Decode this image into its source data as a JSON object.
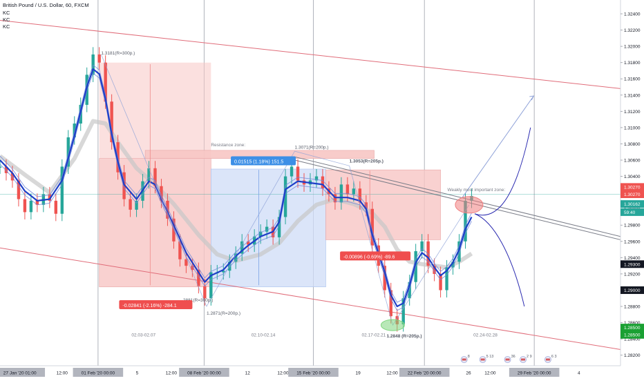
{
  "header": {
    "symbol_title": "British Pound / U.S. Dollar, 60, FXCM",
    "indicators": [
      "KC",
      "KC",
      "KC"
    ]
  },
  "colors": {
    "background": "#ffffff",
    "candle_up": "#26a69a",
    "candle_down": "#ef5350",
    "kc_line": "#1e3fc8",
    "ma_gray": "#c8c8c8",
    "channel": "#e06b78",
    "zone_red": "#f7c6c4",
    "zone_blue": "#cfdcf7",
    "label_red": "#ef4e4e",
    "label_blue": "#3d8fe6",
    "projection": "#2a2ab0",
    "guide": "#8fa2d8"
  },
  "chart_data": {
    "type": "line",
    "title": "British Pound / U.S. Dollar, 60, FXCM",
    "xlabel": "",
    "ylabel": "",
    "ylim": [
      1.2807,
      1.3257
    ],
    "yticks": [
      1.282,
      1.284,
      1.286,
      1.288,
      1.29,
      1.292,
      1.294,
      1.296,
      1.298,
      1.3,
      1.302,
      1.304,
      1.306,
      1.308,
      1.31,
      1.312,
      1.314,
      1.316,
      1.318,
      1.32,
      1.322,
      1.324
    ],
    "ytick_labels": [
      "1.28200",
      "1.28400",
      "1.28600",
      "1.28800",
      "1.29000",
      "1.29200",
      "1.29400",
      "1.29600",
      "1.29800",
      "1.30000",
      "1.30200",
      "1.30400",
      "1.30600",
      "1.30800",
      "1.31000",
      "1.31200",
      "1.31400",
      "1.31600",
      "1.31800",
      "1.32000",
      "1.32200",
      "1.32400"
    ],
    "xlim": [
      0,
      100
    ],
    "x_axis_labels": [
      {
        "x": 3.2,
        "label": "27 Jan '20  01:00",
        "highlight": true
      },
      {
        "x": 10,
        "label": "12:00",
        "highlight": false
      },
      {
        "x": 15.8,
        "label": "01 Feb '20  00:00",
        "highlight": true
      },
      {
        "x": 22.1,
        "label": "5",
        "highlight": false
      },
      {
        "x": 27.6,
        "label": "12:00",
        "highlight": false
      },
      {
        "x": 32.9,
        "label": "08 Feb '20  00:00",
        "highlight": true
      },
      {
        "x": 39.9,
        "label": "12",
        "highlight": false
      },
      {
        "x": 45.6,
        "label": "12:00",
        "highlight": false
      },
      {
        "x": 50.5,
        "label": "15 Feb '20  00:00",
        "highlight": true
      },
      {
        "x": 57.7,
        "label": "19",
        "highlight": false
      },
      {
        "x": 63.2,
        "label": "12:00",
        "highlight": false
      },
      {
        "x": 68.4,
        "label": "22 Feb '20  00:00",
        "highlight": true
      },
      {
        "x": 75.5,
        "label": "26",
        "highlight": false
      },
      {
        "x": 79.0,
        "label": "12:00",
        "highlight": false
      },
      {
        "x": 86.1,
        "label": "29 Feb '20  00:00",
        "highlight": true
      },
      {
        "x": 93.3,
        "label": "4",
        "highlight": false
      }
    ],
    "series": [
      {
        "name": "",
        "kind": "price",
        "points": [
          [
            0,
            1.3052
          ],
          [
            1,
            1.3044
          ],
          [
            2,
            1.3035
          ],
          [
            3,
            1.3012
          ],
          [
            4,
            1.2996
          ],
          [
            5,
            1.301
          ],
          [
            6,
            1.3005
          ],
          [
            7,
            1.3018
          ],
          [
            8,
            1.301
          ],
          [
            9,
            1.2994
          ],
          [
            10,
            1.3052
          ],
          [
            11,
            1.3088
          ],
          [
            12,
            1.3105
          ],
          [
            13,
            1.3128
          ],
          [
            14,
            1.3165
          ],
          [
            15,
            1.319
          ],
          [
            16,
            1.318
          ],
          [
            17,
            1.3132
          ],
          [
            18,
            1.3082
          ],
          [
            19,
            1.3045
          ],
          [
            20,
            1.3012
          ],
          [
            21,
            1.2999
          ],
          [
            22,
            1.301
          ],
          [
            23,
            1.3034
          ],
          [
            24,
            1.305
          ],
          [
            25,
            1.3028
          ],
          [
            26,
            1.301
          ],
          [
            27,
            1.2988
          ],
          [
            28,
            1.296
          ],
          [
            29,
            1.2938
          ],
          [
            30,
            1.293
          ],
          [
            31,
            1.2925
          ],
          [
            32,
            1.2905
          ],
          [
            33,
            1.289
          ],
          [
            34,
            1.2922
          ],
          [
            35,
            1.2922
          ],
          [
            36,
            1.2924
          ],
          [
            37,
            1.2935
          ],
          [
            38,
            1.2945
          ],
          [
            39,
            1.296
          ],
          [
            40,
            1.2956
          ],
          [
            41,
            1.2966
          ],
          [
            42,
            1.2972
          ],
          [
            43,
            1.2978
          ],
          [
            44,
            1.2965
          ],
          [
            45,
            1.299
          ],
          [
            46,
            1.304
          ],
          [
            47,
            1.3052
          ],
          [
            48,
            1.3035
          ],
          [
            49,
            1.303
          ],
          [
            50,
            1.3035
          ],
          [
            51,
            1.304
          ],
          [
            52,
            1.3025
          ],
          [
            53,
            1.3018
          ],
          [
            54,
            1.3008
          ],
          [
            55,
            1.303
          ],
          [
            56,
            1.3018
          ],
          [
            57,
            1.3025
          ],
          [
            58,
            1.3008
          ],
          [
            59,
            1.3
          ],
          [
            60,
            1.2955
          ],
          [
            61,
            1.293
          ],
          [
            62,
            1.29
          ],
          [
            63,
            1.2868
          ],
          [
            64,
            1.2858
          ],
          [
            65,
            1.289
          ],
          [
            66,
            1.291
          ],
          [
            67,
            1.2948
          ],
          [
            68,
            1.296
          ],
          [
            69,
            1.293
          ],
          [
            70,
            1.292
          ],
          [
            71,
            1.29
          ],
          [
            72,
            1.2928
          ],
          [
            73,
            1.2935
          ],
          [
            74,
            1.296
          ],
          [
            75,
            1.301
          ],
          [
            76,
            1.3016
          ]
        ]
      },
      {
        "name": "",
        "kind": "kc_basis",
        "points": [
          [
            0,
            1.306
          ],
          [
            2,
            1.3044
          ],
          [
            4,
            1.3022
          ],
          [
            6,
            1.301
          ],
          [
            8,
            1.3012
          ],
          [
            10,
            1.3035
          ],
          [
            12,
            1.309
          ],
          [
            14,
            1.315
          ],
          [
            15,
            1.3172
          ],
          [
            16,
            1.3166
          ],
          [
            17,
            1.3135
          ],
          [
            18,
            1.3092
          ],
          [
            19,
            1.3058
          ],
          [
            20,
            1.303
          ],
          [
            22,
            1.3012
          ],
          [
            24,
            1.3034
          ],
          [
            25,
            1.303
          ],
          [
            26,
            1.3012
          ],
          [
            28,
            1.298
          ],
          [
            30,
            1.2946
          ],
          [
            32,
            1.2922
          ],
          [
            33,
            1.291
          ],
          [
            34,
            1.2918
          ],
          [
            36,
            1.2925
          ],
          [
            38,
            1.2942
          ],
          [
            40,
            1.2955
          ],
          [
            42,
            1.2966
          ],
          [
            44,
            1.2972
          ],
          [
            45,
            1.2984
          ],
          [
            46,
            1.3024
          ],
          [
            48,
            1.3034
          ],
          [
            50,
            1.3032
          ],
          [
            52,
            1.303
          ],
          [
            54,
            1.3014
          ],
          [
            56,
            1.3014
          ],
          [
            58,
            1.301
          ],
          [
            59,
            1.3
          ],
          [
            60,
            1.2968
          ],
          [
            62,
            1.2922
          ],
          [
            63,
            1.2894
          ],
          [
            64,
            1.288
          ],
          [
            65,
            1.2884
          ],
          [
            66,
            1.2906
          ],
          [
            67,
            1.2934
          ],
          [
            68,
            1.2946
          ],
          [
            69,
            1.294
          ],
          [
            70,
            1.2928
          ],
          [
            71,
            1.2918
          ],
          [
            72,
            1.2924
          ],
          [
            73,
            1.2934
          ],
          [
            74,
            1.295
          ],
          [
            75,
            1.2975
          ],
          [
            76,
            1.299
          ]
        ]
      },
      {
        "name": "",
        "kind": "ma_gray",
        "points": [
          [
            0,
            1.3065
          ],
          [
            4,
            1.3042
          ],
          [
            8,
            1.302
          ],
          [
            12,
            1.3062
          ],
          [
            15,
            1.3108
          ],
          [
            17,
            1.3105
          ],
          [
            19,
            1.3082
          ],
          [
            22,
            1.305
          ],
          [
            25,
            1.303
          ],
          [
            28,
            1.3006
          ],
          [
            32,
            1.2968
          ],
          [
            35,
            1.2944
          ],
          [
            38,
            1.2936
          ],
          [
            42,
            1.2944
          ],
          [
            45,
            1.2958
          ],
          [
            48,
            1.2985
          ],
          [
            51,
            1.3005
          ],
          [
            54,
            1.3012
          ],
          [
            57,
            1.3006
          ],
          [
            60,
            1.2995
          ],
          [
            62,
            1.2978
          ],
          [
            64,
            1.295
          ],
          [
            66,
            1.2935
          ],
          [
            68,
            1.2932
          ],
          [
            70,
            1.293
          ],
          [
            72,
            1.2928
          ],
          [
            74,
            1.2935
          ],
          [
            76,
            1.2945
          ]
        ]
      }
    ],
    "channel_lines": [
      {
        "from": [
          0,
          1.3232
        ],
        "to": [
          100,
          1.3148
        ]
      },
      {
        "from": [
          0,
          1.2952
        ],
        "to": [
          100,
          1.2827
        ]
      }
    ],
    "trend_lines": [
      {
        "from": [
          47.5,
          1.3064
        ],
        "to": [
          100,
          1.2966
        ]
      },
      {
        "from": [
          47.5,
          1.306
        ],
        "to": [
          100,
          1.2962
        ]
      }
    ],
    "zones": [
      {
        "kind": "short",
        "x": [
          16,
          34
        ],
        "top": 1.318,
        "entry": 1.3062,
        "bottom": 1.2904
      },
      {
        "kind": "long",
        "x": [
          34,
          52.5
        ],
        "top": 1.3049,
        "entry": 1.2904,
        "bottom": 1.2904
      },
      {
        "kind": "short",
        "x": [
          52.5,
          71
        ],
        "top": 1.3048,
        "entry": 1.3048,
        "bottom": 1.2962
      },
      {
        "kind": "resistance",
        "x": [
          23.4,
          60.3
        ],
        "top": 1.3072,
        "bottom": 1.3062
      }
    ],
    "price_levels": [
      {
        "label": "1.30270",
        "value": 1.3027,
        "color": "#ef5350"
      },
      {
        "label": "1.30270",
        "value": 1.3018,
        "color": "#ef5350"
      },
      {
        "label": "1.30162",
        "value": 1.3006,
        "color": "#26a69a"
      },
      {
        "label": "59:40",
        "value": 1.2996,
        "color": "#26a69a"
      },
      {
        "label": "1.29300",
        "value": 1.2932,
        "color": "#131722"
      },
      {
        "label": "1.29000",
        "value": 1.29,
        "color": "#131722"
      },
      {
        "label": "1.28500",
        "value": 1.2854,
        "color": "#1aa033"
      },
      {
        "label": "1.28500",
        "value": 1.2845,
        "color": "#1aa033"
      }
    ],
    "annotations": [
      {
        "text": "1.3181(R=300p.)",
        "x": 16.3,
        "y": 1.319,
        "style": "pivot"
      },
      {
        "text": "2881(R=300p.)",
        "x": 29.5,
        "y": 1.2886,
        "style": "pivot"
      },
      {
        "text": "1.2871(R=200p.)",
        "x": 33.3,
        "y": 1.287,
        "style": "pivot"
      },
      {
        "text": "1.3071(R=200p.)",
        "x": 47.5,
        "y": 1.3074,
        "style": "pivot"
      },
      {
        "text": "1.3053(R=205p.)",
        "x": 56.3,
        "y": 1.3057,
        "style": "pivot-bold"
      },
      {
        "text": "1.2848 (R=205p.)",
        "x": 62.3,
        "y": 1.2842,
        "style": "pivot-bold"
      },
      {
        "text": "Resistance zone:",
        "x": 34,
        "y": 1.3077,
        "style": "note"
      },
      {
        "text": "Weakly most important zone:",
        "x": 72.1,
        "y": 1.3022,
        "style": "note"
      },
      {
        "text": "02.03-02.07",
        "x": 21.2,
        "y": 1.2843,
        "style": "period"
      },
      {
        "text": "02.10-02.14",
        "x": 40.5,
        "y": 1.2843,
        "style": "period"
      },
      {
        "text": "02.17-02.21",
        "x": 58.3,
        "y": 1.2843,
        "style": "period"
      },
      {
        "text": "02.24-02.28",
        "x": 76.3,
        "y": 1.2843,
        "style": "period"
      }
    ],
    "measure_labels": [
      {
        "text": "-0.02841 (-2.16%) -284.1",
        "x": 19.2,
        "y": 1.288,
        "color": "#ef4e4e"
      },
      {
        "text": "0.01515 (1.18%) 151.5",
        "x": 37.2,
        "y": 1.3057,
        "color": "#3d8fe6"
      },
      {
        "text": "-0.00896 (-0.69%) -89.6",
        "x": 54.8,
        "y": 1.294,
        "color": "#ef4e4e"
      }
    ],
    "projection_paths": [
      {
        "kind": "arrow",
        "points": [
          [
            74.5,
            1.3014
          ],
          [
            86,
            1.3139
          ]
        ]
      },
      {
        "kind": "curve",
        "points": [
          [
            76.5,
            1.2994
          ],
          [
            80,
            1.2985
          ],
          [
            83,
            1.301
          ],
          [
            85.5,
            1.31
          ]
        ]
      },
      {
        "kind": "curve",
        "points": [
          [
            76.5,
            1.2994
          ],
          [
            79.5,
            1.2985
          ],
          [
            82.5,
            1.2945
          ],
          [
            84.5,
            1.288
          ]
        ]
      }
    ],
    "ellipses": [
      {
        "x": 75.6,
        "y": 1.3005,
        "color": "#f08080"
      },
      {
        "x": 63.3,
        "y": 1.2857,
        "color": "#7ed67e"
      }
    ],
    "vertical_lines": [
      15.8,
      32.9,
      50.5,
      68.4,
      86.1
    ],
    "crosshair_y": 1.3018,
    "event_markers": [
      {
        "x": 74.8,
        "count": "8"
      },
      {
        "x": 77.8,
        "count": "5 13"
      },
      {
        "x": 81.8,
        "count": "36"
      },
      {
        "x": 84.3,
        "count": "2 9"
      },
      {
        "x": 88.3,
        "count": "6 3"
      }
    ]
  }
}
